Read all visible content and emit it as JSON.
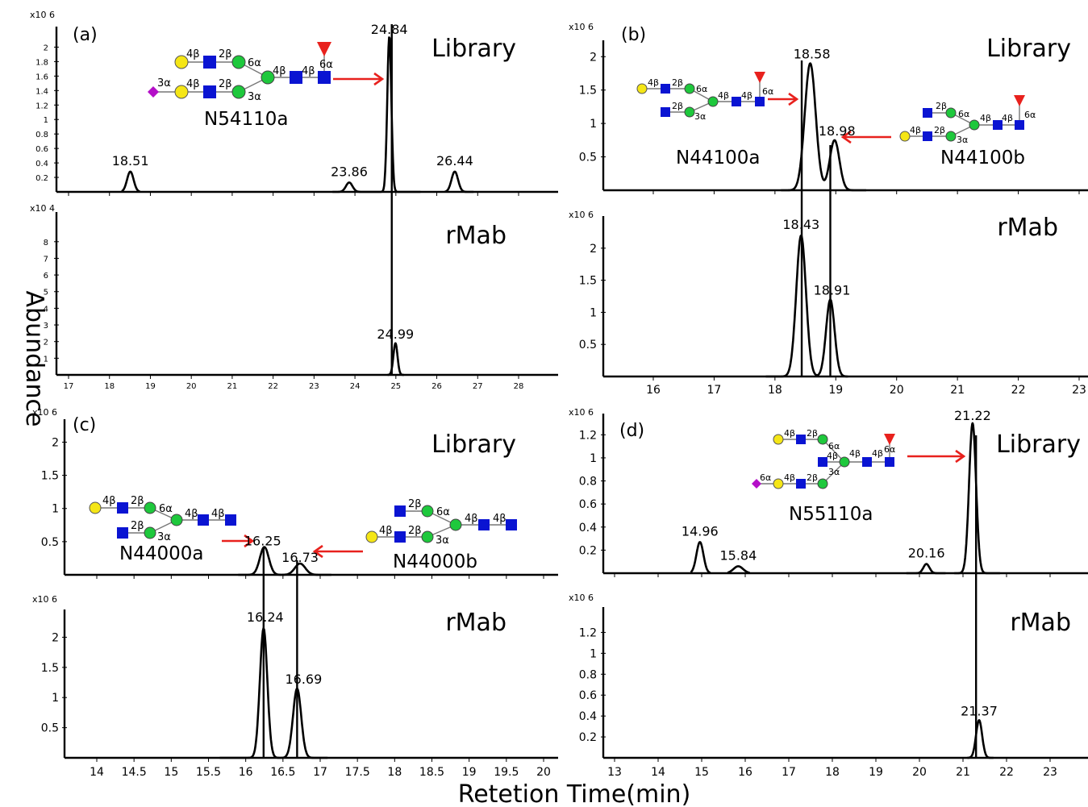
{
  "figure": {
    "ylabel": "Abundance",
    "xlabel": "Retetion Time(min)"
  },
  "colors": {
    "trace": "#000000",
    "arrow": "#e8211d",
    "galactose_yellow": "#f5e616",
    "glcnac_blue": "#0a14d2",
    "mannose_green": "#1ec83c",
    "fucose_red": "#e8211d",
    "sialic_magenta": "#b40fc8"
  },
  "chart_data": [
    {
      "panel": "(a)",
      "type": "line",
      "xlim": [
        16.8,
        29.0
      ],
      "x_ticks": [
        17,
        18,
        19,
        20,
        21,
        22,
        23,
        24,
        25,
        26,
        27,
        28
      ],
      "subplots": [
        {
          "series_label": "Library",
          "multiplier": "x10 6",
          "ylim": [
            0,
            2.15
          ],
          "y_ticks": [
            0.2,
            0.4,
            0.6,
            0.8,
            1,
            1.2,
            1.4,
            1.6,
            1.8,
            2
          ],
          "y_tick_labels": [
            "0.2",
            "0.4",
            "0.6",
            "0.8",
            "1",
            "1.2",
            "1.4",
            "1.6",
            "1.8",
            "2"
          ],
          "peaks": [
            {
              "rt": 18.51,
              "height": 0.28,
              "label": "18.51"
            },
            {
              "rt": 23.86,
              "height": 0.13,
              "label": "23.86"
            },
            {
              "rt": 24.84,
              "height": 2.15,
              "label": "24.84"
            },
            {
              "rt": 26.44,
              "height": 0.28,
              "label": "26.44"
            }
          ],
          "glycans": [
            {
              "name": "N54110a"
            }
          ]
        },
        {
          "series_label": "rMab",
          "multiplier": "x10 4",
          "ylim": [
            0,
            9.2
          ],
          "y_ticks": [
            1,
            2,
            3,
            4,
            5,
            6,
            7,
            8
          ],
          "y_tick_labels": [
            "1",
            "2",
            "3",
            "4",
            "5",
            "6",
            "7",
            "8"
          ],
          "peaks": [
            {
              "rt": 24.99,
              "height": 1.9,
              "label": "24.99"
            }
          ]
        }
      ]
    },
    {
      "panel": "(b)",
      "type": "line",
      "xlim": [
        15.5,
        23.3
      ],
      "x_ticks": [
        16,
        17,
        18,
        19,
        20,
        21,
        22,
        23
      ],
      "subplots": [
        {
          "series_label": "Library",
          "multiplier": "x10 6",
          "ylim": [
            0,
            2.1
          ],
          "y_ticks": [
            0.5,
            1,
            1.5,
            2
          ],
          "y_tick_labels": [
            "0.5",
            "1",
            "1.5",
            "2"
          ],
          "peaks": [
            {
              "rt": 18.58,
              "height": 1.9,
              "label": "18.58"
            },
            {
              "rt": 18.98,
              "height": 0.75,
              "label": "18.98"
            }
          ],
          "glycans": [
            {
              "name": "N44100a"
            },
            {
              "name": "N44100b"
            }
          ]
        },
        {
          "series_label": "rMab",
          "multiplier": "x10 6",
          "ylim": [
            0,
            2.35
          ],
          "y_ticks": [
            0.5,
            1,
            1.5,
            2
          ],
          "y_tick_labels": [
            "0.5",
            "1",
            "1.5",
            "2"
          ],
          "peaks": [
            {
              "rt": 18.43,
              "height": 2.2,
              "label": "18.43"
            },
            {
              "rt": 18.91,
              "height": 1.2,
              "label": "18.91"
            }
          ]
        }
      ]
    },
    {
      "panel": "(c)",
      "type": "line",
      "xlim": [
        13.6,
        20.35
      ],
      "x_ticks": [
        14,
        14.5,
        15,
        15.5,
        16,
        16.5,
        17,
        17.5,
        18,
        18.5,
        19,
        19.5,
        20
      ],
      "subplots": [
        {
          "series_label": "Library",
          "multiplier": "x10 6",
          "ylim": [
            0,
            2.2
          ],
          "y_ticks": [
            0.5,
            1,
            1.5,
            2
          ],
          "y_tick_labels": [
            "0.5",
            "1",
            "1.5",
            "2"
          ],
          "peaks": [
            {
              "rt": 16.25,
              "height": 0.42,
              "label": "16.25"
            },
            {
              "rt": 16.73,
              "height": 0.17,
              "label": "16.73"
            }
          ],
          "glycans": [
            {
              "name": "N44000a"
            },
            {
              "name": "N44000b"
            }
          ]
        },
        {
          "series_label": "rMab",
          "multiplier": "x10 6",
          "ylim": [
            0,
            2.3
          ],
          "y_ticks": [
            0.5,
            1,
            1.5,
            2
          ],
          "y_tick_labels": [
            "0.5",
            "1",
            "1.5",
            "2"
          ],
          "peaks": [
            {
              "rt": 16.24,
              "height": 2.15,
              "label": "16.24"
            },
            {
              "rt": 16.69,
              "height": 1.15,
              "label": "16.69"
            }
          ]
        }
      ]
    },
    {
      "panel": "(d)",
      "type": "line",
      "xlim": [
        12.7,
        23.8
      ],
      "x_ticks": [
        13,
        14,
        15,
        16,
        17,
        18,
        19,
        20,
        21,
        22,
        23
      ],
      "subplots": [
        {
          "series_label": "Library",
          "multiplier": "x10 6",
          "ylim": [
            0,
            1.3
          ],
          "y_ticks": [
            0.2,
            0.4,
            0.6,
            0.8,
            1,
            1.2
          ],
          "y_tick_labels": [
            "0.2",
            "0.4",
            "0.6",
            "0.8",
            "1",
            "1.2"
          ],
          "peaks": [
            {
              "rt": 14.96,
              "height": 0.27,
              "label": "14.96"
            },
            {
              "rt": 15.84,
              "height": 0.06,
              "label": "15.84"
            },
            {
              "rt": 20.16,
              "height": 0.08,
              "label": "20.16"
            },
            {
              "rt": 21.22,
              "height": 1.3,
              "label": "21.22"
            }
          ],
          "glycans": [
            {
              "name": "N55110a"
            }
          ]
        },
        {
          "series_label": "rMab",
          "multiplier": "x10 6",
          "ylim": [
            0,
            1.35
          ],
          "y_ticks": [
            0.2,
            0.4,
            0.6,
            0.8,
            1,
            1.2
          ],
          "y_tick_labels": [
            "0.2",
            "0.4",
            "0.6",
            "0.8",
            "1",
            "1.2"
          ],
          "peaks": [
            {
              "rt": 21.37,
              "height": 0.36,
              "label": "21.37"
            }
          ]
        }
      ]
    }
  ]
}
